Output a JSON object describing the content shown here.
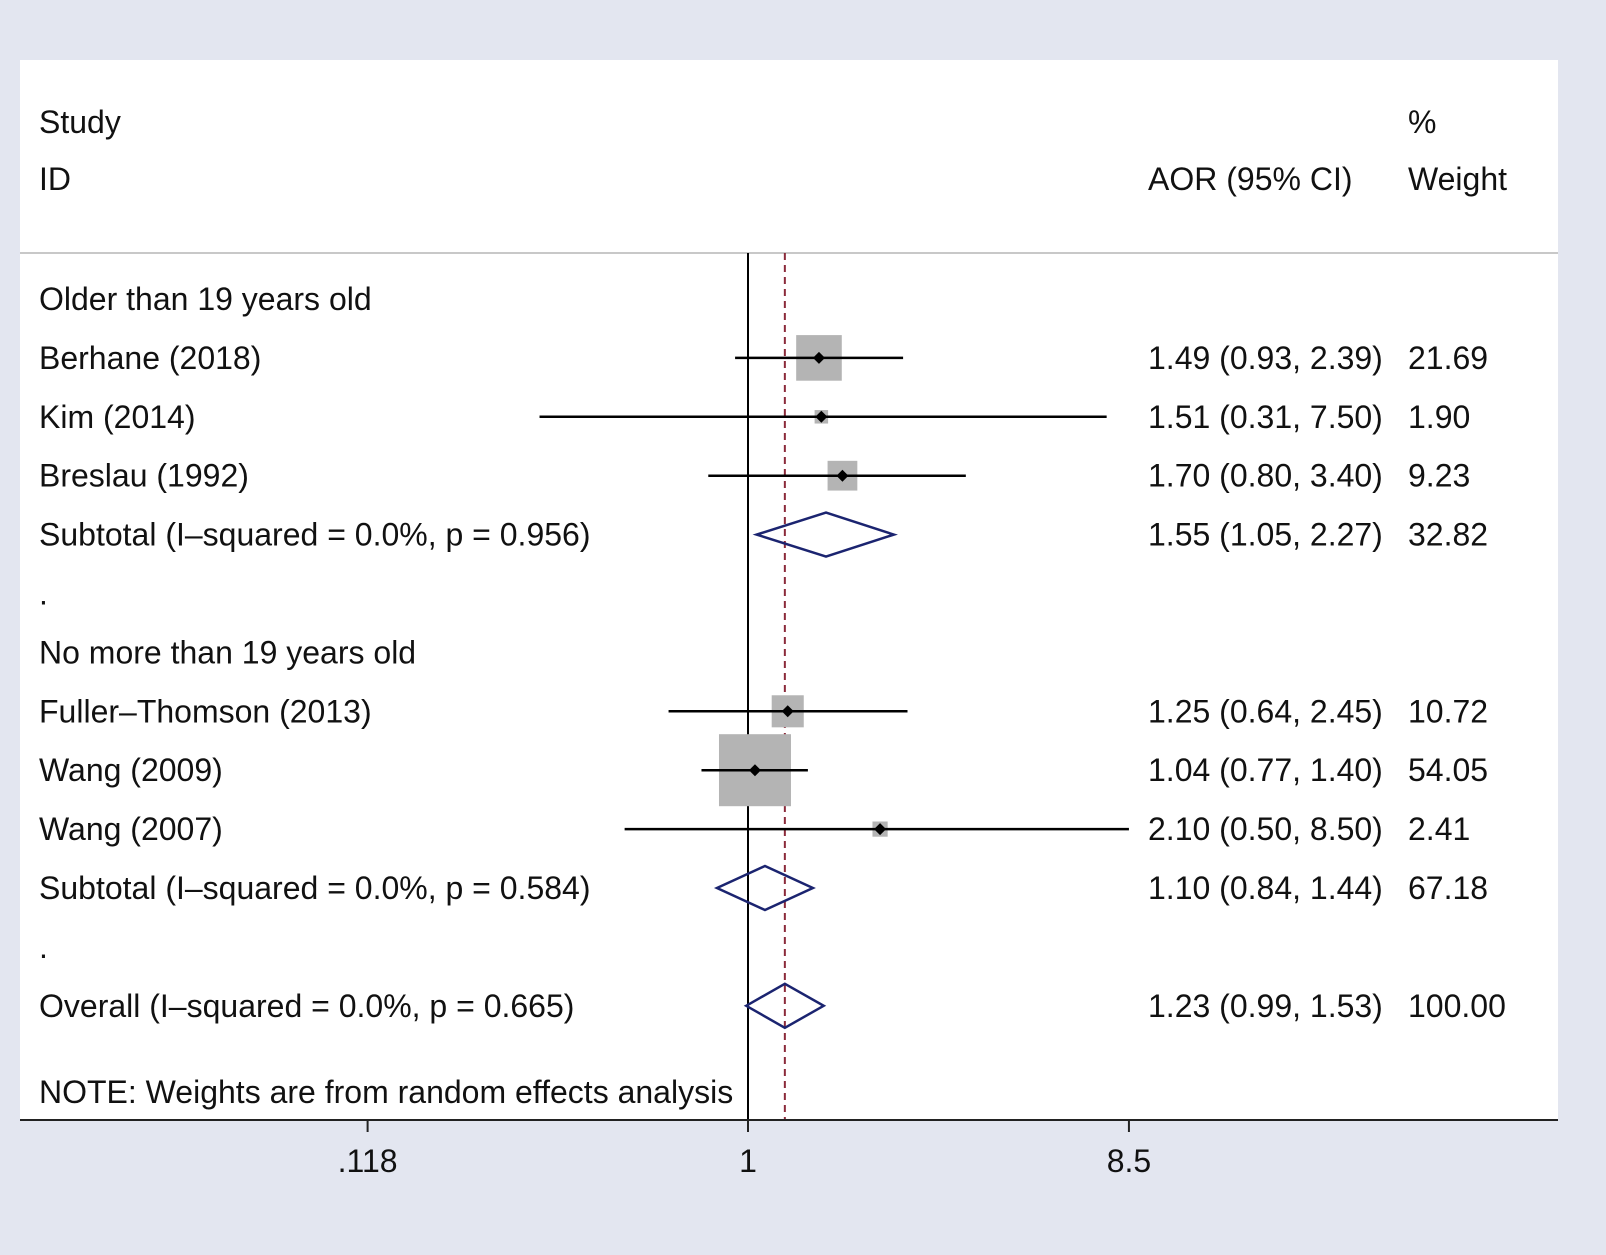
{
  "chart_data": {
    "type": "forest",
    "header": {
      "study": "Study",
      "id": "ID",
      "ci": "AOR (95% CI)",
      "pct": "%",
      "weight": "Weight"
    },
    "null_value": 1,
    "overall_estimate": 1.23,
    "x_ticks": [
      {
        "value": 0.118,
        "label": ".118"
      },
      {
        "value": 1,
        "label": "1"
      },
      {
        "value": 8.5,
        "label": "8.5"
      }
    ],
    "x_scale": "log",
    "rows": [
      {
        "kind": "group",
        "label": "Older than 19 years old"
      },
      {
        "kind": "study",
        "label": "Berhane (2018)",
        "est": 1.49,
        "lo": 0.93,
        "hi": 2.39,
        "weight": 21.69,
        "ci_text": "1.49 (0.93, 2.39)",
        "w_text": "21.69"
      },
      {
        "kind": "study",
        "label": "Kim (2014)",
        "est": 1.51,
        "lo": 0.31,
        "hi": 7.5,
        "weight": 1.9,
        "ci_text": "1.51 (0.31, 7.50)",
        "w_text": "1.90"
      },
      {
        "kind": "study",
        "label": "Breslau (1992)",
        "est": 1.7,
        "lo": 0.8,
        "hi": 3.4,
        "weight": 9.23,
        "ci_text": "1.70 (0.80, 3.40)",
        "w_text": "9.23"
      },
      {
        "kind": "subtotal",
        "label": "Subtotal  (I–squared = 0.0%, p = 0.956)",
        "est": 1.55,
        "lo": 1.05,
        "hi": 2.27,
        "ci_text": "1.55 (1.05, 2.27)",
        "w_text": "32.82"
      },
      {
        "kind": "spacer",
        "label": "."
      },
      {
        "kind": "group",
        "label": "No more than 19 years old"
      },
      {
        "kind": "study",
        "label": "Fuller–Thomson (2013)",
        "est": 1.25,
        "lo": 0.64,
        "hi": 2.45,
        "weight": 10.72,
        "ci_text": "1.25 (0.64, 2.45)",
        "w_text": "10.72"
      },
      {
        "kind": "study",
        "label": "Wang (2009)",
        "est": 1.04,
        "lo": 0.77,
        "hi": 1.4,
        "weight": 54.05,
        "ci_text": "1.04 (0.77, 1.40)",
        "w_text": "54.05"
      },
      {
        "kind": "study",
        "label": "Wang (2007)",
        "est": 2.1,
        "lo": 0.5,
        "hi": 8.5,
        "weight": 2.41,
        "ci_text": "2.10 (0.50, 8.50)",
        "w_text": "2.41"
      },
      {
        "kind": "subtotal",
        "label": "Subtotal  (I–squared = 0.0%, p = 0.584)",
        "est": 1.1,
        "lo": 0.84,
        "hi": 1.44,
        "ci_text": "1.10 (0.84, 1.44)",
        "w_text": "67.18"
      },
      {
        "kind": "spacer",
        "label": "."
      },
      {
        "kind": "overall",
        "label": "Overall  (I–squared = 0.0%, p = 0.665)",
        "est": 1.23,
        "lo": 0.99,
        "hi": 1.53,
        "ci_text": "1.23 (0.99, 1.53)",
        "w_text": "100.00"
      }
    ],
    "note": "NOTE: Weights are from random effects analysis",
    "colors": {
      "page_bg": "#e3e6f0",
      "plot_bg": "#ffffff",
      "box": "#b4b4b4",
      "diamond": "#1b2470",
      "null_line": "#000000",
      "overall_line": "#8b2a3a",
      "text": "#111111"
    }
  }
}
